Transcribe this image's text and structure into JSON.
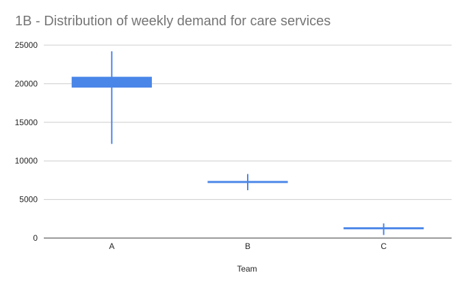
{
  "chart_data": {
    "type": "candlestick",
    "title": "1B - Distribution of weekly demand for care services",
    "xlabel": "Team",
    "ylabel": "",
    "ylim": [
      0,
      25000
    ],
    "yticks": [
      "0",
      "5000",
      "10000",
      "15000",
      "20000",
      "25000"
    ],
    "grid": true,
    "legend": "none",
    "color": "#4a86e8",
    "categories": [
      "A",
      "B",
      "C"
    ],
    "boxes": [
      {
        "category": "A",
        "low": 12200,
        "open": 19500,
        "close": 20900,
        "high": 24200
      },
      {
        "category": "B",
        "low": 6200,
        "open": 7200,
        "close": 7400,
        "high": 8300
      },
      {
        "category": "C",
        "low": 400,
        "open": 1200,
        "close": 1400,
        "high": 1900
      }
    ]
  }
}
